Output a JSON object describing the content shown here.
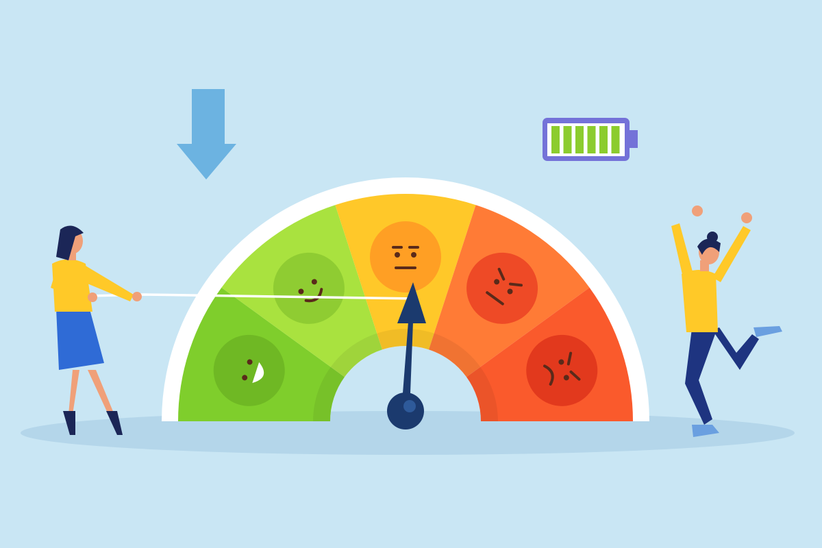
{
  "scene": {
    "background": "#c9e6f4",
    "ground": "#b4d6ea"
  },
  "gauge": {
    "segments": [
      {
        "mood": "very-happy",
        "color": "#7fce2c",
        "face": "#6fb824"
      },
      {
        "mood": "happy",
        "color": "#a9e23f",
        "face": "#8fcc32"
      },
      {
        "mood": "neutral",
        "color": "#ffc829",
        "face": "#ff9f24"
      },
      {
        "mood": "angry",
        "color": "#ff7b36",
        "face": "#ee4a26"
      },
      {
        "mood": "very-angry",
        "color": "#fa5a2c",
        "face": "#e2391d"
      }
    ],
    "needle_points_to": "neutral",
    "needle_color": "#1b3a6e",
    "rim_color": "#ffffff"
  },
  "arrow": {
    "icon": "arrow-down-icon",
    "color": "#6cb3e1"
  },
  "battery": {
    "icon": "battery-full-icon",
    "frame": "#7472d8",
    "bar_color": "#8ccc2e",
    "level_bars": 6,
    "max_bars": 6
  },
  "figures": [
    {
      "name": "woman-pulling-rope",
      "shirt": "#ffc928",
      "skirt": "#2f6bd6"
    },
    {
      "name": "woman-jumping",
      "shirt": "#ffc928",
      "pants": "#1e3480"
    }
  ]
}
